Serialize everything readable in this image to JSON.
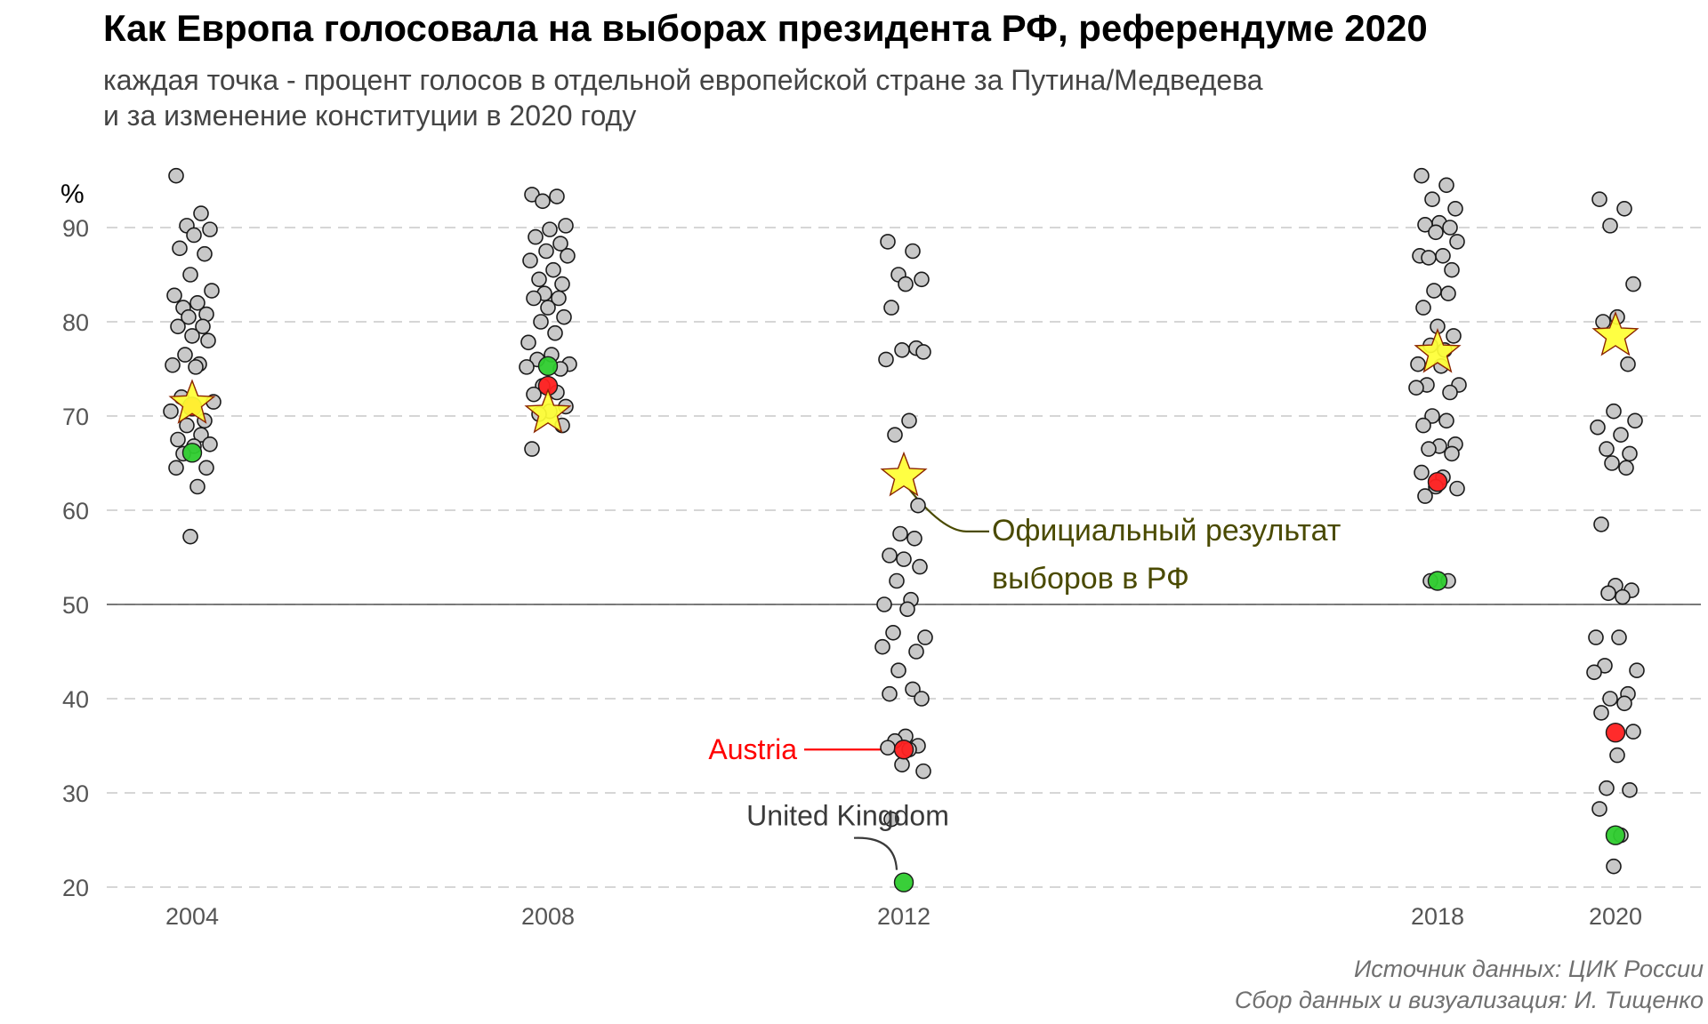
{
  "title": "Как Европа голосовала на выборах президента РФ, референдуме 2020",
  "subtitle_line1": "каждая точка - процент голосов в отдельной европейской стране за Путина/Медведева",
  "subtitle_line2": "и за изменение конституции в 2020 году",
  "caption_line1": "Источник данных: ЦИК России",
  "caption_line2": "Сбор данных и визуализация: И. Тищенко",
  "colors": {
    "country_point": "#c8c8c8",
    "highlight_red": "#ff2020",
    "highlight_green": "#2ecc2e",
    "official_star": "#ffff33",
    "star_outline": "#8b2500",
    "official_label": "#4a4a00",
    "austria_label": "#ff0000",
    "uk_label": "#3a3a3a",
    "grid": "#c8c8c8"
  },
  "chart_data": {
    "type": "scatter",
    "ylabel": "%",
    "ylim": [
      20,
      95
    ],
    "yticks": [
      20,
      30,
      40,
      50,
      60,
      70,
      80,
      90
    ],
    "xticks": [
      2004,
      2008,
      2012,
      2018,
      2020
    ],
    "reference_line": 50,
    "grid": "horizontal dashed",
    "series": [
      {
        "points": [
          {
            "x": 2004,
            "values": [
              95.5,
              91.5,
              90.2,
              89.8,
              89.2,
              87.8,
              87.2,
              85.0,
              83.3,
              82.8,
              82.0,
              81.5,
              80.8,
              80.5,
              79.5,
              79.5,
              78.5,
              78.0,
              76.5,
              75.5,
              75.4,
              75.2,
              72.0,
              71.5,
              70.5,
              69.5,
              69.0,
              68.0,
              67.5,
              67.0,
              66.8,
              66.0,
              64.5,
              64.5,
              62.5,
              57.2
            ]
          },
          {
            "x": 2008,
            "values": [
              93.5,
              93.3,
              92.8,
              90.2,
              89.8,
              89.0,
              88.3,
              87.5,
              87.0,
              86.5,
              85.5,
              84.5,
              84.0,
              83.0,
              82.5,
              82.5,
              81.5,
              80.5,
              80.0,
              78.8,
              77.8,
              76.5,
              76.0,
              75.5,
              75.2,
              75.0,
              73.2,
              72.5,
              72.3,
              71.0,
              70.5,
              70.2,
              69.0,
              66.5
            ]
          },
          {
            "x": 2012,
            "values": [
              88.5,
              87.5,
              85.0,
              84.5,
              84.0,
              81.5,
              77.2,
              77.0,
              76.8,
              76.0,
              69.5,
              68.0,
              60.5,
              57.5,
              57.0,
              55.2,
              54.8,
              54.0,
              52.5,
              50.5,
              50.0,
              49.5,
              47.0,
              46.5,
              45.5,
              45.0,
              43.0,
              41.0,
              40.5,
              40.0,
              36.0,
              35.5,
              35.0,
              34.8,
              34.6,
              33.0,
              32.3,
              27.2
            ]
          },
          {
            "x": 2018,
            "values": [
              95.5,
              94.5,
              93.0,
              92.0,
              90.5,
              90.3,
              90.0,
              89.5,
              88.5,
              87.0,
              87.0,
              86.8,
              85.5,
              83.3,
              83.0,
              81.5,
              79.5,
              78.5,
              77.5,
              77.0,
              75.5,
              75.3,
              73.3,
              73.3,
              73.0,
              72.5,
              70.0,
              69.5,
              69.0,
              67.0,
              66.8,
              66.5,
              66.0,
              64.0,
              63.5,
              62.5,
              62.3,
              61.5,
              52.5,
              52.5
            ]
          },
          {
            "x": 2020,
            "values": [
              93.0,
              92.0,
              90.2,
              84.0,
              80.5,
              80.0,
              75.5,
              70.5,
              69.5,
              68.8,
              68.0,
              66.5,
              66.0,
              65.0,
              64.5,
              58.5,
              52.0,
              51.5,
              51.2,
              50.8,
              46.5,
              46.5,
              43.5,
              43.0,
              42.8,
              40.5,
              40.0,
              39.5,
              38.5,
              36.5,
              34.0,
              30.5,
              30.3,
              28.3,
              25.5,
              22.2
            ]
          }
        ]
      },
      {
        "name": "Austria",
        "color": "highlight_red",
        "points": [
          {
            "x": 2004,
            "y": 71.0
          },
          {
            "x": 2008,
            "y": 73.2
          },
          {
            "x": 2012,
            "y": 34.6
          },
          {
            "x": 2018,
            "y": 63.0
          },
          {
            "x": 2020,
            "y": 36.4
          }
        ]
      },
      {
        "name": "United Kingdom",
        "color": "highlight_green",
        "points": [
          {
            "x": 2004,
            "y": 66.1
          },
          {
            "x": 2008,
            "y": 75.3
          },
          {
            "x": 2012,
            "y": 20.5
          },
          {
            "x": 2018,
            "y": 52.5
          },
          {
            "x": 2020,
            "y": 25.5
          }
        ]
      },
      {
        "name": "Официальный результат выборов в РФ",
        "color": "official_star",
        "marker": "star",
        "points": [
          {
            "x": 2004,
            "y": 71.3
          },
          {
            "x": 2008,
            "y": 70.3
          },
          {
            "x": 2012,
            "y": 63.6
          },
          {
            "x": 2018,
            "y": 76.7
          },
          {
            "x": 2020,
            "y": 78.5
          }
        ]
      }
    ],
    "annotations": {
      "official_line1": "Официальный результат",
      "official_line2": "выборов в РФ",
      "austria": "Austria",
      "uk": "United Kingdom"
    }
  }
}
